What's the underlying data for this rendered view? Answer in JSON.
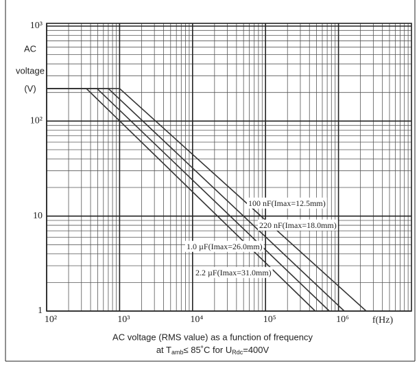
{
  "chart_data": {
    "type": "line",
    "xscale": "log",
    "yscale": "log",
    "ylabel": [
      "AC",
      "voltage",
      "(V)"
    ],
    "xlabel": "f(Hz)",
    "caption": [
      "AC voltage (RMS value) as a function of frequency",
      [
        "at T",
        "amb",
        "≤ 85˚C  for U",
        "Rdc",
        "=400V"
      ]
    ],
    "xlim": [
      100,
      10000000
    ],
    "ylim": [
      1,
      1000
    ],
    "xticks": [
      {
        "value": 100,
        "label": "10²"
      },
      {
        "value": 1000,
        "label": "10³"
      },
      {
        "value": 10000,
        "label": "10⁴"
      },
      {
        "value": 100000,
        "label": "10⁵"
      },
      {
        "value": 1000000,
        "label": "10⁶"
      }
    ],
    "yticks": [
      1,
      10,
      {
        "value": 100,
        "label": "10²"
      },
      {
        "value": 1000,
        "label": "10³"
      }
    ],
    "grid": true,
    "minor_grid": true,
    "series": [
      {
        "name": "100 nF(Imax=12.5mm)",
        "color": "#333333",
        "x": [
          100,
          1000,
          2400000
        ],
        "values": [
          220,
          220,
          1
        ]
      },
      {
        "name": "220 nF(Imax=18.0mm)",
        "color": "#333333",
        "x": [
          100,
          700,
          1200000
        ],
        "values": [
          220,
          220,
          1
        ]
      },
      {
        "name": "1.0 µF(Imax=26.0mm)",
        "color": "#333333",
        "x": [
          100,
          490,
          750000
        ],
        "values": [
          220,
          220,
          1
        ]
      },
      {
        "name": "2.2 µF(Imax=31.0mm)",
        "color": "#333333",
        "x": [
          100,
          350,
          480000
        ],
        "values": [
          220,
          220,
          1
        ]
      }
    ]
  }
}
